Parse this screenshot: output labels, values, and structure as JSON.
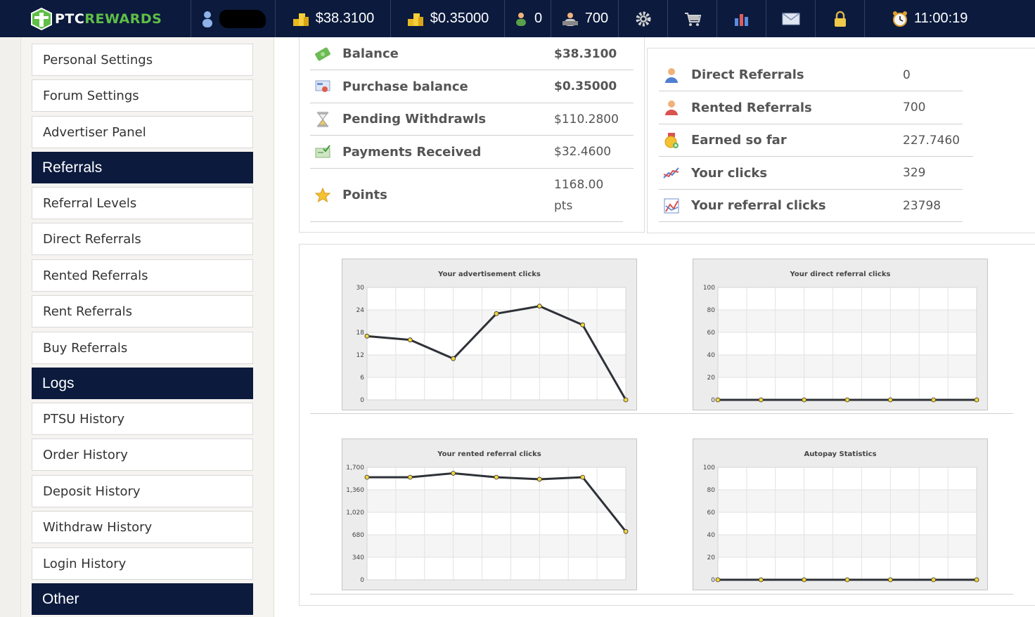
{
  "topbar": {
    "logo_part1": "PTC",
    "logo_part2": "REWARDS",
    "balance": "$38.3100",
    "purchase_balance": "$0.35000",
    "direct_referrals": "0",
    "rented_referrals": "700",
    "time": "11:00:19",
    "icons": [
      "user-icon",
      "coins-icon",
      "coins-icon",
      "direct-referrals-icon",
      "rented-referrals-icon",
      "gear-icon",
      "cart-icon",
      "stats-icon",
      "mail-icon",
      "lock-icon",
      "clock-icon"
    ]
  },
  "sidebar": {
    "items": [
      {
        "type": "item",
        "label": "Personal Settings"
      },
      {
        "type": "item",
        "label": "Forum Settings"
      },
      {
        "type": "item",
        "label": "Advertiser Panel"
      },
      {
        "type": "header",
        "label": "Referrals"
      },
      {
        "type": "item",
        "label": "Referral Levels"
      },
      {
        "type": "item",
        "label": "Direct Referrals"
      },
      {
        "type": "item",
        "label": "Rented Referrals"
      },
      {
        "type": "item",
        "label": "Rent Referrals"
      },
      {
        "type": "item",
        "label": "Buy Referrals"
      },
      {
        "type": "header",
        "label": "Logs"
      },
      {
        "type": "item",
        "label": "PTSU History"
      },
      {
        "type": "item",
        "label": "Order History"
      },
      {
        "type": "item",
        "label": "Deposit History"
      },
      {
        "type": "item",
        "label": "Withdraw History"
      },
      {
        "type": "item",
        "label": "Login History"
      },
      {
        "type": "header",
        "label": "Other"
      }
    ]
  },
  "account_stats": [
    {
      "label": "Balance",
      "value": "$38.3100",
      "icon": "money-icon"
    },
    {
      "label": "Purchase balance",
      "value": "$0.35000",
      "icon": "card-icon"
    },
    {
      "label": "Pending Withdrawls",
      "value": "$110.2800",
      "icon": "hourglass-icon"
    },
    {
      "label": "Payments Received",
      "value": "$32.4600",
      "icon": "check-payment-icon"
    },
    {
      "label": "Points",
      "value": "1168.00",
      "unit": "pts",
      "icon": "star-icon"
    }
  ],
  "referral_stats": [
    {
      "label": "Direct Referrals",
      "value": "0",
      "icon": "direct-user-icon"
    },
    {
      "label": "Rented Referrals",
      "value": "700",
      "icon": "rented-user-icon"
    },
    {
      "label": "Earned so far",
      "value": "227.7460",
      "icon": "medal-icon"
    },
    {
      "label": "Your clicks",
      "value": "329",
      "icon": "line-graph-icon"
    },
    {
      "label": "Your referral clicks",
      "value": "23798",
      "icon": "chart-icon"
    }
  ],
  "colors": {
    "nav_bg": "#0b1a3d",
    "accent_green": "#5fbf46",
    "line": "#2e3238",
    "point": "#f2d53c"
  },
  "chart_data": [
    {
      "type": "line",
      "title": "Your advertisement clicks",
      "yticks": [
        "0",
        "6",
        "12",
        "18",
        "24",
        "30"
      ],
      "ylim": [
        0,
        30
      ],
      "values": [
        17,
        16,
        11,
        23,
        25,
        20,
        0
      ]
    },
    {
      "type": "line",
      "title": "Your direct referral clicks",
      "yticks": [
        "0",
        "20",
        "40",
        "60",
        "80",
        "100"
      ],
      "ylim": [
        0,
        100
      ],
      "values": [
        0,
        0,
        0,
        0,
        0,
        0,
        0
      ]
    },
    {
      "type": "line",
      "title": "Your rented referral clicks",
      "yticks": [
        "0",
        "340",
        "680",
        "1,020",
        "1,360",
        "1,700"
      ],
      "ylim": [
        0,
        1700
      ],
      "values": [
        1550,
        1550,
        1610,
        1550,
        1520,
        1550,
        730
      ]
    },
    {
      "type": "line",
      "title": "Autopay Statistics",
      "yticks": [
        "0",
        "20",
        "40",
        "60",
        "80",
        "100"
      ],
      "ylim": [
        0,
        100
      ],
      "values": [
        0,
        0,
        0,
        0,
        0,
        0,
        0
      ]
    }
  ]
}
